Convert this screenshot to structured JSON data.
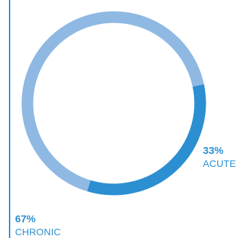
{
  "chart_data": {
    "type": "pie",
    "variant": "donut",
    "title": "",
    "slices": [
      {
        "label": "ACUTE",
        "value": 33,
        "display": "33%",
        "color": "#2b8fd1"
      },
      {
        "label": "CHRONIC",
        "value": 67,
        "display": "67%",
        "color": "#8fb9e3"
      }
    ],
    "legend": "none",
    "grid": false
  },
  "colors": {
    "accent_text": "#2b8fd1",
    "left_rule": "#2b8fd1",
    "background": "#ffffff"
  }
}
